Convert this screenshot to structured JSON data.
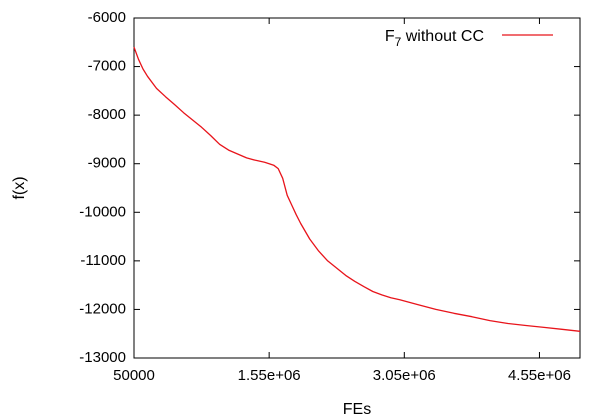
{
  "chart_data": {
    "type": "line",
    "xlabel": "FEs",
    "ylabel": "f(x)",
    "xlim": [
      50000,
      5000000
    ],
    "ylim": [
      -13000,
      -6000
    ],
    "x_ticks": [
      50000,
      1550000,
      3050000,
      4550000
    ],
    "x_tick_labels": [
      "50000",
      "1.55e+06",
      "3.05e+06",
      "4.55e+06"
    ],
    "y_ticks": [
      -13000,
      -12000,
      -11000,
      -10000,
      -9000,
      -8000,
      -7000,
      -6000
    ],
    "y_tick_labels": [
      "-13000",
      "-12000",
      "-11000",
      "-10000",
      "-9000",
      "-8000",
      "-7000",
      "-6000"
    ],
    "grid": false,
    "legend_position": "top-right",
    "series": [
      {
        "name_main": "F",
        "name_sub": "7",
        "name_rest": " without CC",
        "color": "#e8141b",
        "x": [
          50000,
          100000,
          150000,
          200000,
          300000,
          400000,
          500000,
          600000,
          700000,
          800000,
          900000,
          1000000,
          1100000,
          1200000,
          1300000,
          1400000,
          1500000,
          1550000,
          1600000,
          1650000,
          1700000,
          1750000,
          1800000,
          1850000,
          1900000,
          2000000,
          2100000,
          2200000,
          2300000,
          2400000,
          2500000,
          2600000,
          2700000,
          2800000,
          2900000,
          3000000,
          3200000,
          3400000,
          3600000,
          3800000,
          4000000,
          4200000,
          4400000,
          4600000,
          4800000,
          5000000
        ],
        "y": [
          -6600,
          -6850,
          -7050,
          -7200,
          -7450,
          -7620,
          -7780,
          -7950,
          -8100,
          -8250,
          -8420,
          -8600,
          -8720,
          -8800,
          -8880,
          -8930,
          -8970,
          -9000,
          -9030,
          -9100,
          -9300,
          -9650,
          -9850,
          -10050,
          -10230,
          -10550,
          -10800,
          -11000,
          -11150,
          -11300,
          -11420,
          -11530,
          -11630,
          -11700,
          -11760,
          -11800,
          -11900,
          -12000,
          -12080,
          -12150,
          -12230,
          -12290,
          -12330,
          -12370,
          -12410,
          -12450
        ]
      }
    ]
  }
}
